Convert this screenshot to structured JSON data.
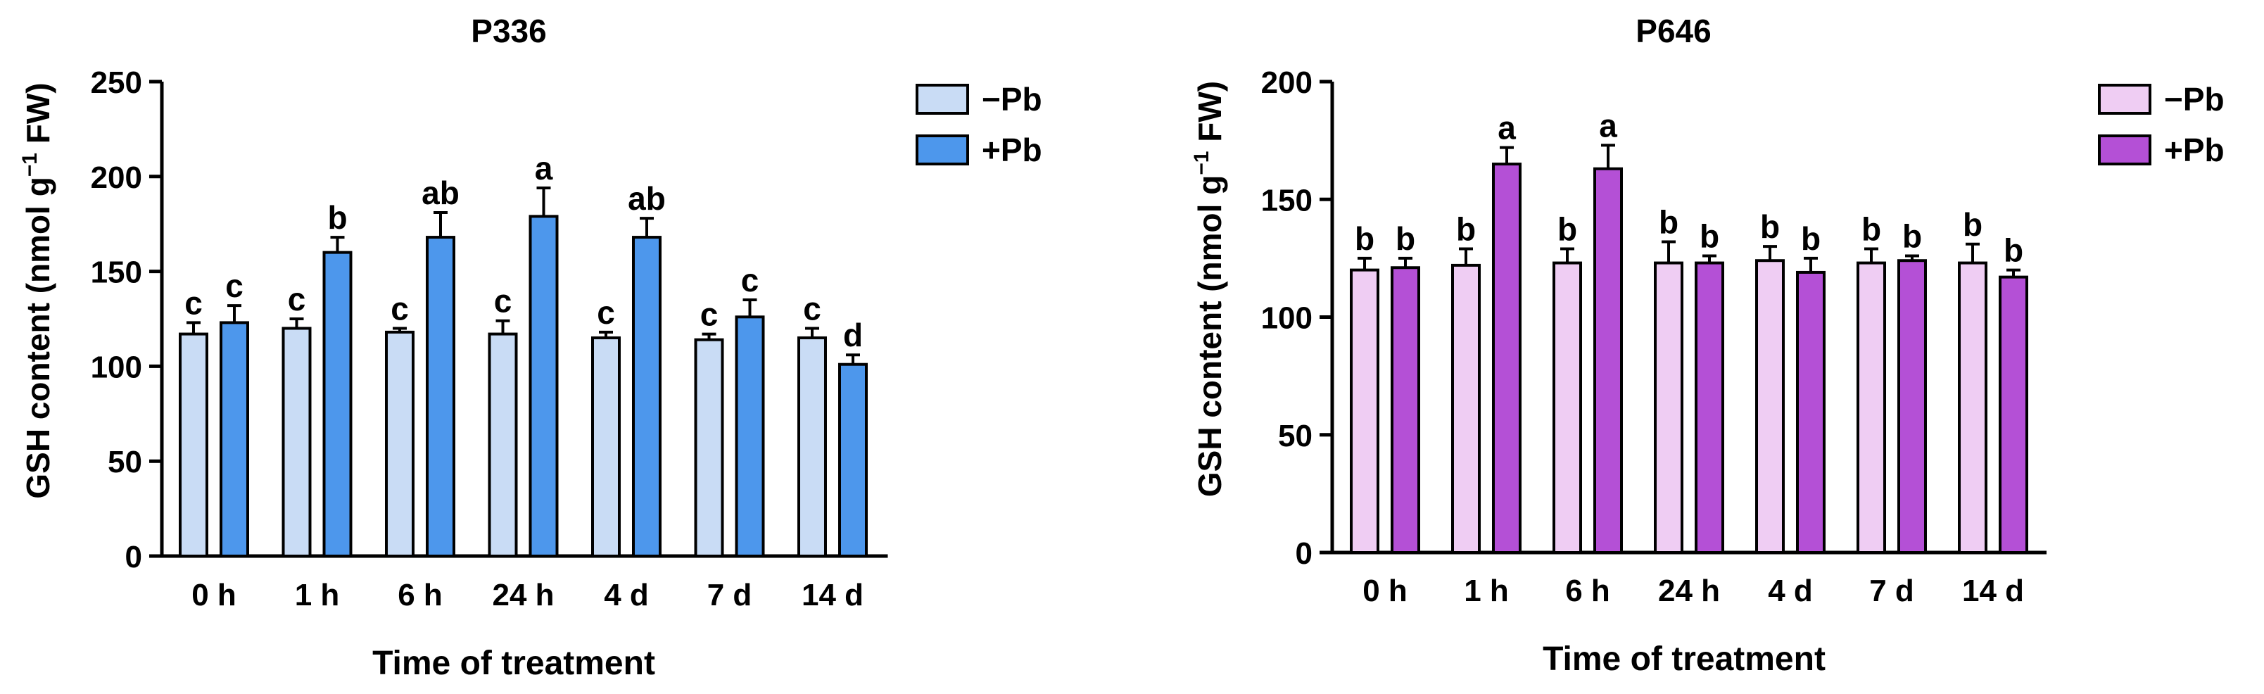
{
  "chart_data": [
    {
      "type": "bar",
      "title": "P336",
      "xlabel": "Time of treatment",
      "ylabel": "GSH content (nmol g",
      "ylabel_sup": "−1",
      "ylabel_tail": " FW)",
      "categories": [
        "0 h",
        "1 h",
        "6 h",
        "24 h",
        "4 d",
        "7 d",
        "14 d"
      ],
      "ylim": [
        0,
        250
      ],
      "yticks": [
        0,
        50,
        100,
        150,
        200,
        250
      ],
      "legend_position": "top-right",
      "series": [
        {
          "name": "−Pb",
          "color": "#c9dcf5",
          "values": [
            117,
            120,
            118,
            117,
            115,
            114,
            115
          ],
          "errors": [
            6,
            5,
            2,
            7,
            3,
            3,
            5
          ],
          "letters": [
            "c",
            "c",
            "c",
            "c",
            "c",
            "c",
            "c"
          ]
        },
        {
          "name": "+Pb",
          "color": "#4d97ec",
          "values": [
            123,
            160,
            168,
            179,
            168,
            126,
            101
          ],
          "errors": [
            9,
            8,
            13,
            15,
            10,
            9,
            5
          ],
          "letters": [
            "c",
            "b",
            "ab",
            "a",
            "ab",
            "c",
            "d"
          ]
        }
      ]
    },
    {
      "type": "bar",
      "title": "P646",
      "xlabel": "Time of treatment",
      "ylabel": "GSH content (nmol g",
      "ylabel_sup": "−1",
      "ylabel_tail": " FW)",
      "categories": [
        "0 h",
        "1 h",
        "6 h",
        "24 h",
        "4 d",
        "7 d",
        "14 d"
      ],
      "ylim": [
        0,
        200
      ],
      "yticks": [
        0,
        50,
        100,
        150,
        200
      ],
      "legend_position": "top-right",
      "series": [
        {
          "name": "−Pb",
          "color": "#efcdf3",
          "values": [
            120,
            122,
            123,
            123,
            124,
            123,
            123
          ],
          "errors": [
            5,
            7,
            6,
            9,
            6,
            6,
            8
          ],
          "letters": [
            "b",
            "b",
            "b",
            "b",
            "b",
            "b",
            "b"
          ]
        },
        {
          "name": "+Pb",
          "color": "#b450d6",
          "values": [
            121,
            165,
            163,
            123,
            119,
            124,
            117
          ],
          "errors": [
            4,
            7,
            10,
            3,
            6,
            2,
            3
          ],
          "letters": [
            "b",
            "a",
            "a",
            "b",
            "b",
            "b",
            "b"
          ]
        }
      ]
    }
  ]
}
